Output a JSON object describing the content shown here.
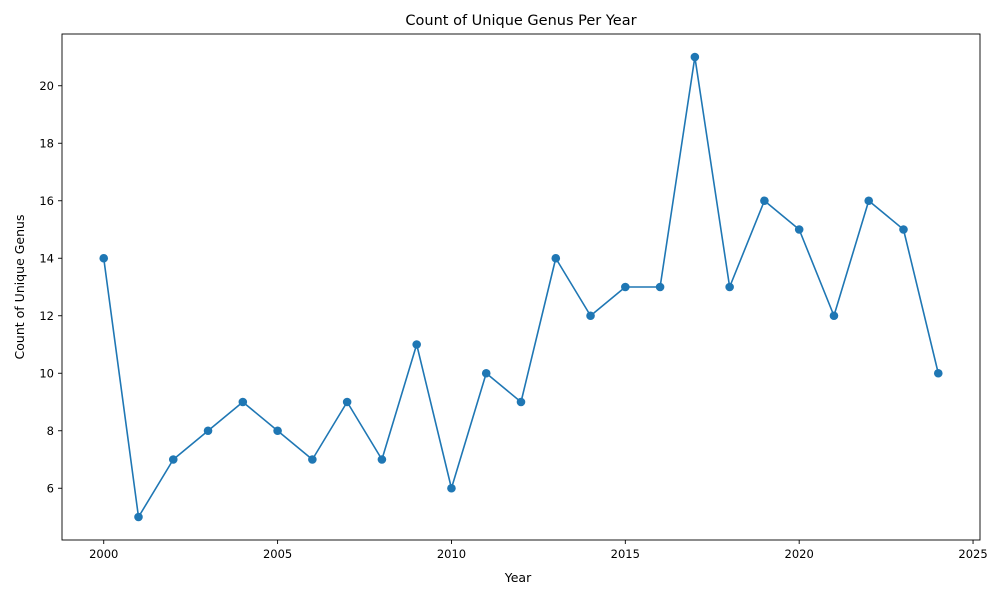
{
  "chart_data": {
    "type": "line",
    "title": "Count of Unique Genus Per Year",
    "xlabel": "Year",
    "ylabel": "Count of Unique Genus",
    "xlim": [
      1998.8,
      2025.2
    ],
    "ylim": [
      4.2,
      21.8
    ],
    "xticks": [
      2000,
      2005,
      2010,
      2015,
      2020,
      2025
    ],
    "yticks": [
      6,
      8,
      10,
      12,
      14,
      16,
      18,
      20
    ],
    "grid": false,
    "legend": "none",
    "series": [
      {
        "color": "#1f77b4",
        "marker": "circle",
        "x": [
          2000,
          2001,
          2002,
          2003,
          2004,
          2005,
          2006,
          2007,
          2008,
          2009,
          2010,
          2011,
          2012,
          2013,
          2014,
          2015,
          2016,
          2017,
          2018,
          2019,
          2020,
          2021,
          2022,
          2023,
          2024
        ],
        "y": [
          14,
          5,
          7,
          8,
          9,
          8,
          7,
          9,
          7,
          11,
          6,
          10,
          9,
          14,
          12,
          13,
          13,
          21,
          13,
          16,
          15,
          12,
          16,
          15,
          10
        ]
      }
    ]
  }
}
